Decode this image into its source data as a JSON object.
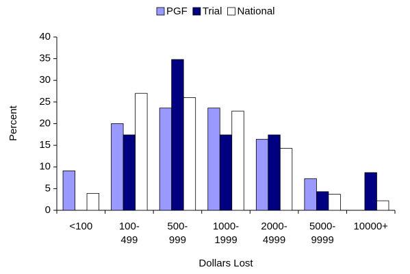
{
  "chart_data": {
    "type": "bar",
    "categories": [
      "<100",
      "100-\n499",
      "500-\n999",
      "1000-\n1999",
      "2000-\n4999",
      "5000-\n9999",
      "10000+"
    ],
    "series": [
      {
        "name": "PGF",
        "color": "#9999ff",
        "values": [
          9.1,
          20,
          23.6,
          23.6,
          16.4,
          7.3,
          0
        ]
      },
      {
        "name": "Trial",
        "color": "#000080",
        "values": [
          0,
          17.4,
          34.8,
          17.4,
          17.4,
          4.3,
          8.7
        ]
      },
      {
        "name": "National",
        "color": "#ffffff",
        "values": [
          3.9,
          27,
          26,
          22.9,
          14.3,
          3.7,
          2.2
        ]
      }
    ],
    "xlabel": "Dollars Lost",
    "ylabel": "Percent",
    "ylim": [
      0,
      40
    ],
    "yticks": [
      0,
      5,
      10,
      15,
      20,
      25,
      30,
      35,
      40
    ],
    "grid": false,
    "legend": "top"
  }
}
